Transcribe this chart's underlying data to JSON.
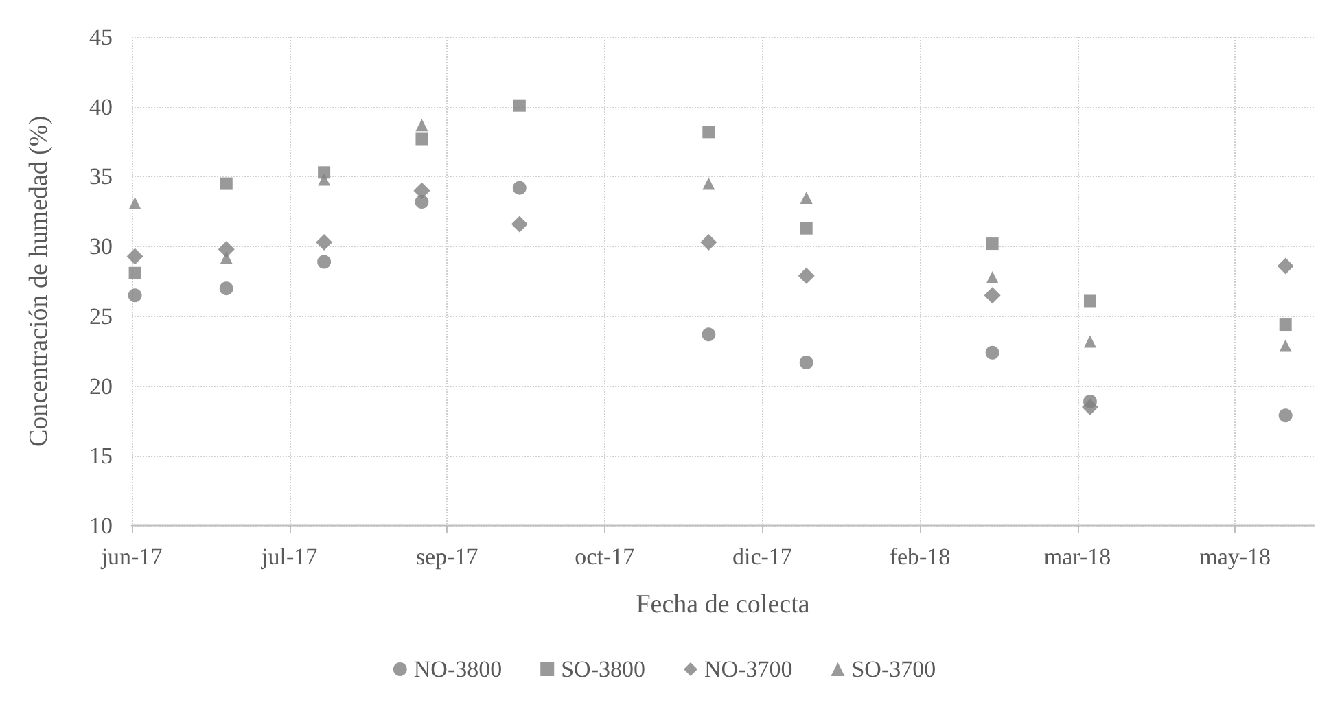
{
  "chart_data": {
    "type": "scatter",
    "xlabel": "Fecha de colecta",
    "ylabel": "Concentración de humedad (%)",
    "x": [
      "2017-06-02",
      "2017-07-01",
      "2017-08-01",
      "2017-09-01",
      "2017-10-02",
      "2017-12-01",
      "2018-01-01",
      "2018-03-01",
      "2018-04-01",
      "2018-06-02"
    ],
    "xlim": [
      "2017-06-01",
      "2018-06-11"
    ],
    "xticks": [
      {
        "value": "2017-06-01",
        "label": "jun-17"
      },
      {
        "value": "2017-07-21",
        "label": "jul-17"
      },
      {
        "value": "2017-09-09",
        "label": "sep-17"
      },
      {
        "value": "2017-10-29",
        "label": "oct-17"
      },
      {
        "value": "2017-12-18",
        "label": "dic-17"
      },
      {
        "value": "2018-02-06",
        "label": "feb-18"
      },
      {
        "value": "2018-03-28",
        "label": "mar-18"
      },
      {
        "value": "2018-05-17",
        "label": "may-18"
      }
    ],
    "ylim": [
      10,
      45
    ],
    "yticks": [
      10,
      15,
      20,
      25,
      30,
      35,
      40,
      45
    ],
    "grid": true,
    "legend": "bottom",
    "series": [
      {
        "name": "NO-3800",
        "color": "#7f7f7f",
        "marker": "circle",
        "values": [
          26.5,
          27.0,
          28.9,
          33.2,
          34.2,
          23.7,
          21.7,
          22.4,
          18.9,
          17.9
        ]
      },
      {
        "name": "SO-3800",
        "color": "#7f7f7f",
        "marker": "square",
        "values": [
          28.1,
          34.5,
          35.3,
          37.7,
          40.1,
          38.2,
          31.3,
          30.2,
          26.1,
          24.4
        ]
      },
      {
        "name": "NO-3700",
        "color": "#7f7f7f",
        "marker": "diamond",
        "values": [
          29.3,
          29.8,
          30.3,
          34.0,
          31.6,
          30.3,
          27.9,
          26.5,
          18.5,
          28.6
        ]
      },
      {
        "name": "SO-3700",
        "color": "#7f7f7f",
        "marker": "triangle",
        "values": [
          33.1,
          29.2,
          34.8,
          38.7,
          null,
          34.5,
          33.5,
          27.8,
          23.2,
          22.9
        ]
      }
    ]
  }
}
